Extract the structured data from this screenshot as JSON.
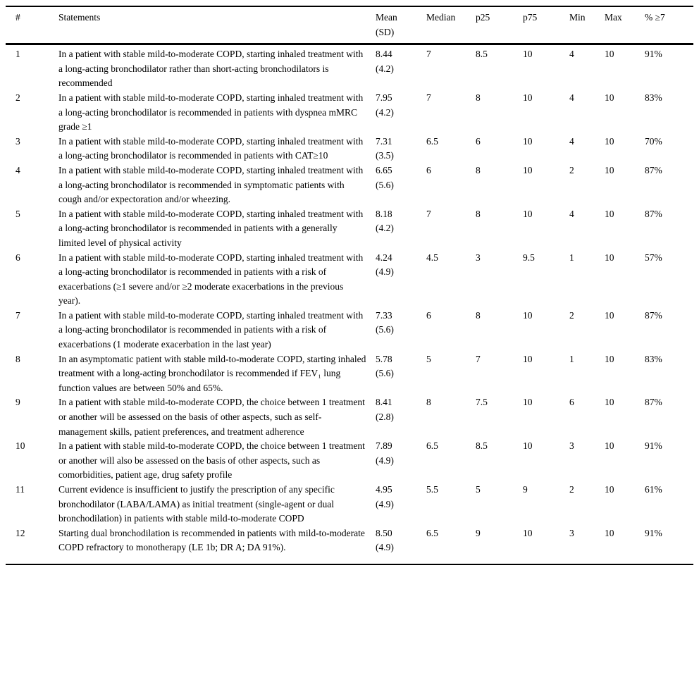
{
  "page": {
    "background_color": "#ffffff",
    "text_color": "#000000"
  },
  "table": {
    "headers": {
      "num": "#",
      "statements": "Statements",
      "mean_sd": "Mean\n(SD)",
      "median": "Median",
      "p25": "p25",
      "p75": "p75",
      "min": "Min",
      "max": "Max",
      "pct_ge7": "% ≥7"
    },
    "rows": [
      {
        "num": "1",
        "statement": "In a patient with stable mild-to-moderate COPD, starting inhaled treatment with a long-acting bronchodilator rather than short-acting bronchodilators is recommended",
        "mean_sd": "8.44\n(4.2)",
        "median": "7",
        "p25": "8.5",
        "p75": "10",
        "min": "4",
        "max": "10",
        "pct_ge7": "91%"
      },
      {
        "num": "2",
        "statement": "In a patient with stable mild-to-moderate COPD, starting inhaled treatment with a long-acting bronchodilator is recommended in patients with dyspnea mMRC grade ≥1",
        "mean_sd": "7.95\n(4.2)",
        "median": "7",
        "p25": "8",
        "p75": "10",
        "min": "4",
        "max": "10",
        "pct_ge7": "83%"
      },
      {
        "num": "3",
        "statement": "In a patient with stable mild-to-moderate COPD, starting inhaled treatment with a long-acting bronchodilator is recommended in patients with CAT≥10",
        "mean_sd": "7.31\n(3.5)",
        "median": "6.5",
        "p25": "6",
        "p75": "10",
        "min": "4",
        "max": "10",
        "pct_ge7": "70%"
      },
      {
        "num": "4",
        "statement": "In a patient with stable mild-to-moderate COPD, starting inhaled treatment with a long-acting bronchodilator is recommended in symptomatic patients with cough and/or expectoration and/or wheezing.",
        "mean_sd": "6.65\n(5.6)",
        "median": "6",
        "p25": "8",
        "p75": "10",
        "min": "2",
        "max": "10",
        "pct_ge7": "87%"
      },
      {
        "num": "5",
        "statement": "In a patient with stable mild-to-moderate COPD, starting inhaled treatment with a long-acting bronchodilator is recommended in patients with a generally limited level of physical activity",
        "mean_sd": "8.18\n(4.2)",
        "median": "7",
        "p25": "8",
        "p75": "10",
        "min": "4",
        "max": "10",
        "pct_ge7": "87%"
      },
      {
        "num": "6",
        "statement": "In a patient with stable mild-to-moderate COPD, starting inhaled treatment with a long-acting bronchodilator is recommended in patients with a risk of exacerbations (≥1 severe and/or ≥2 moderate exacerbations in the previous year).",
        "mean_sd": "4.24\n(4.9)",
        "median": "4.5",
        "p25": "3",
        "p75": "9.5",
        "min": "1",
        "max": "10",
        "pct_ge7": "57%"
      },
      {
        "num": "7",
        "statement": "In a patient with stable mild-to-moderate COPD, starting inhaled treatment with a long-acting bronchodilator is recommended in patients with a risk of exacerbations (1 moderate exacerbation in the last year)",
        "mean_sd": "7.33\n(5.6)",
        "median": "6",
        "p25": "8",
        "p75": "10",
        "min": "2",
        "max": "10",
        "pct_ge7": "87%"
      },
      {
        "num": "8",
        "statement": "In an asymptomatic patient with stable mild-to-moderate COPD, starting inhaled treatment with a long-acting bronchodilator is recommended if FEV₁ lung function values are between 50% and 65%.",
        "mean_sd": "5.78\n(5.6)",
        "median": "5",
        "p25": "7",
        "p75": "10",
        "min": "1",
        "max": "10",
        "pct_ge7": "83%"
      },
      {
        "num": "9",
        "statement": "In a patient with stable mild-to-moderate COPD, the choice between 1 treatment or another will be assessed on the basis of other aspects, such as self-management skills, patient preferences, and treatment adherence",
        "mean_sd": "8.41\n(2.8)",
        "median": "8",
        "p25": "7.5",
        "p75": "10",
        "min": "6",
        "max": "10",
        "pct_ge7": "87%"
      },
      {
        "num": "10",
        "statement": "In a patient with stable mild-to-moderate COPD, the choice between 1 treatment or another will also be assessed on the basis of other aspects, such as comorbidities, patient age, drug safety profile",
        "mean_sd": "7.89\n(4.9)",
        "median": "6.5",
        "p25": "8.5",
        "p75": "10",
        "min": "3",
        "max": "10",
        "pct_ge7": "91%"
      },
      {
        "num": "11",
        "statement": "Current evidence is insufficient to justify the prescription of any specific bronchodilator (LABA/LAMA) as initial treatment (single-agent or dual bronchodilation) in patients with stable mild-to-moderate COPD",
        "mean_sd": "4.95\n(4.9)",
        "median": "5.5",
        "p25": "5",
        "p75": "9",
        "min": "2",
        "max": "10",
        "pct_ge7": "61%"
      },
      {
        "num": "12",
        "statement": "Starting dual bronchodilation is recommended in patients with mild-to-moderate COPD refractory to monotherapy (LE 1b; DR A; DA 91%).",
        "mean_sd": "8.50\n(4.9)",
        "median": "6.5",
        "p25": "9",
        "p75": "10",
        "min": "3",
        "max": "10",
        "pct_ge7": "91%"
      }
    ]
  }
}
